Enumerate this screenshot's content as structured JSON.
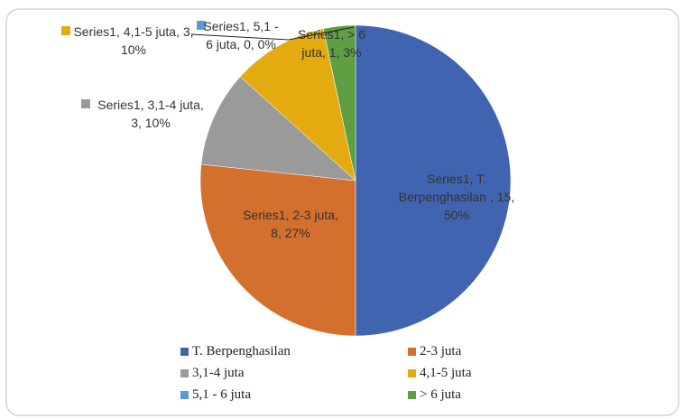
{
  "chart_data": {
    "type": "pie",
    "categories": [
      "T. Berpenghasilan",
      "2-3 juta",
      "3,1-4 juta",
      "4,1-5 juta",
      "5,1 - 6 juta",
      "> 6 juta"
    ],
    "series": [
      {
        "name": "Series1",
        "colors": [
          "#4064b0",
          "#d4702d",
          "#9a9a9a",
          "#e4ab10",
          "#5b9bd5",
          "#5f9e43"
        ],
        "values": [
          15,
          8,
          3,
          3,
          0,
          1
        ],
        "value_labels": [
          "Series1, T. Berpenghasilan , 15, 50%",
          "Series1, 2-3 juta, 8, 27%",
          "Series1, 3,1-4 juta, 3, 10%",
          "Series1, 4,1-5 juta, 3, 10%",
          "Series1, 5,1 - 6 juta, 0, 0%",
          "Series1, > 6 juta, 1, 3%"
        ]
      }
    ],
    "legend": "bottom"
  }
}
